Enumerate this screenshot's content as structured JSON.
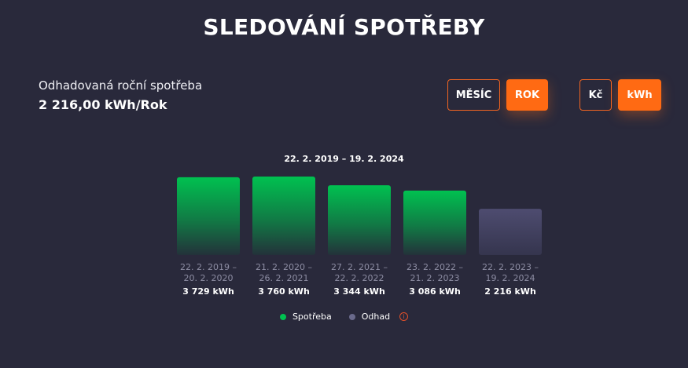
{
  "header": {
    "title": "SLEDOVÁNÍ SPOTŘEBY"
  },
  "estimate": {
    "label": "Odhadovaná roční spotřeba",
    "value": "2 216,00 kWh/Rok"
  },
  "period_toggle": {
    "month_label": "MĚSÍC",
    "year_label": "ROK",
    "selected": "ROK"
  },
  "unit_toggle": {
    "currency_label": "Kč",
    "energy_label": "kWh",
    "selected": "kWh"
  },
  "colors": {
    "accent": "#ff6a13",
    "consumption": "#00c150",
    "estimate": "#4d4b6e",
    "background": "#29293b"
  },
  "chart_data": {
    "type": "bar",
    "title": "22. 2. 2019 – 19. 2. 2024",
    "unit": "kWh",
    "categories": [
      [
        "22. 2. 2019 –",
        "20. 2. 2020"
      ],
      [
        "21. 2. 2020 –",
        "26. 2. 2021"
      ],
      [
        "27. 2. 2021 –",
        "22. 2. 2022"
      ],
      [
        "23. 2. 2022 –",
        "21. 2. 2023"
      ],
      [
        "22. 2. 2023 –",
        "19. 2. 2024"
      ]
    ],
    "values": [
      3729,
      3760,
      3344,
      3086,
      2216
    ],
    "value_labels": [
      "3 729 kWh",
      "3 760 kWh",
      "3 344 kWh",
      "3 086 kWh",
      "2 216 kWh"
    ],
    "kinds": [
      "Spotřeba",
      "Spotřeba",
      "Spotřeba",
      "Spotřeba",
      "Odhad"
    ],
    "legend": [
      {
        "name": "Spotřeba",
        "color": "#00c150"
      },
      {
        "name": "Odhad",
        "color": "#6a6a8c",
        "icon": "info-icon"
      }
    ]
  }
}
